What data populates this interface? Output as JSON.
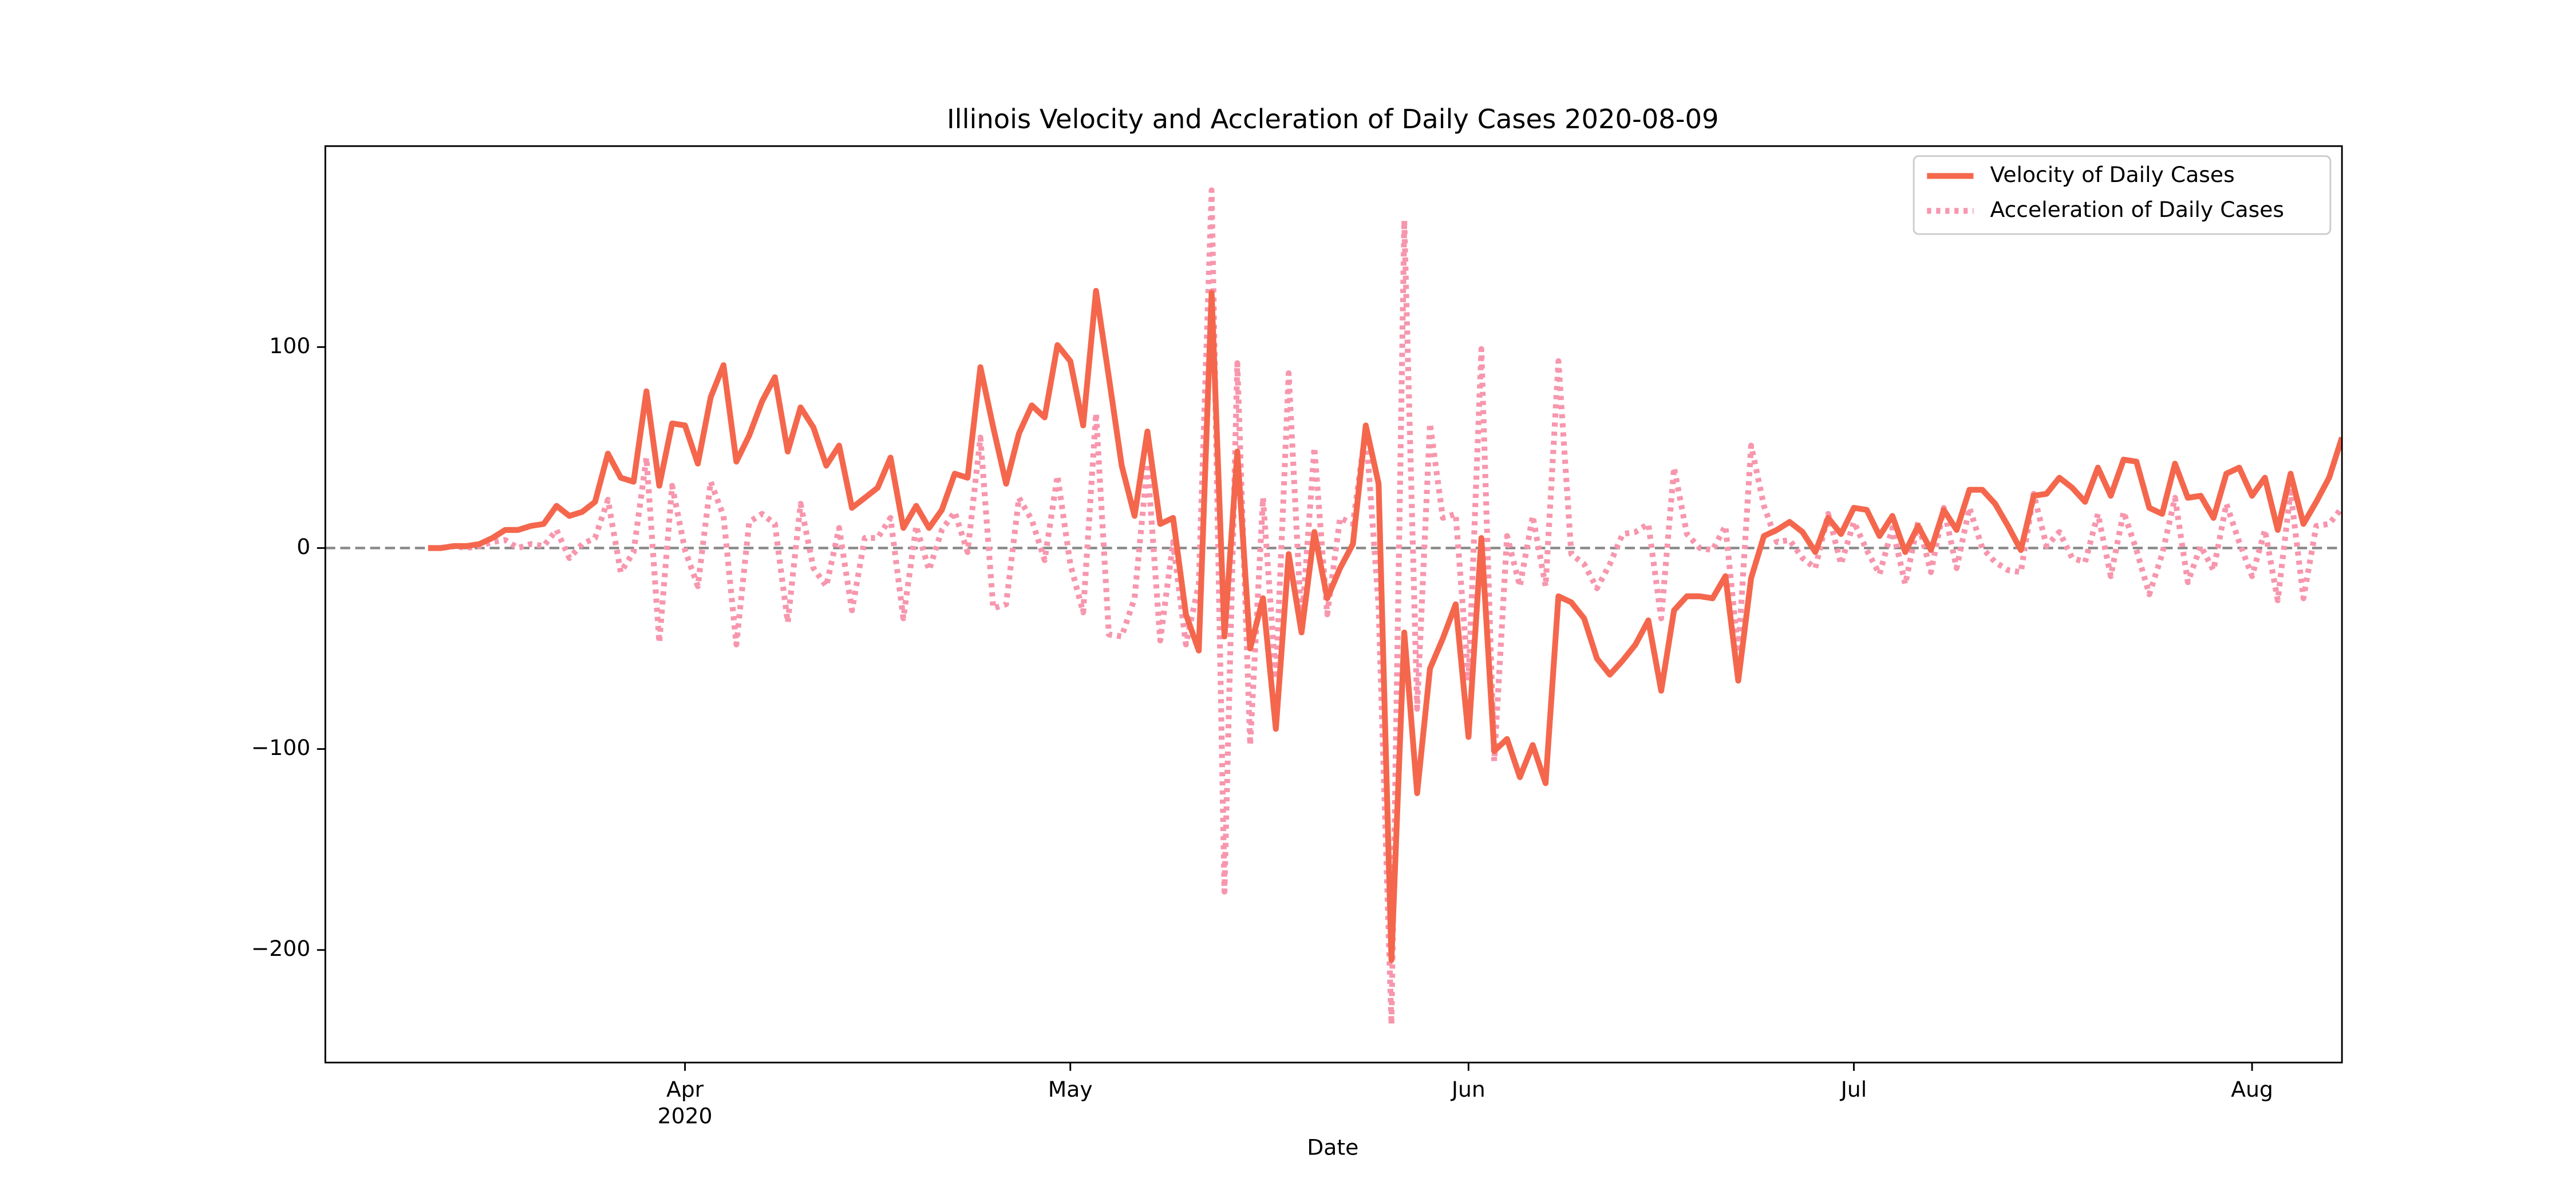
{
  "chart_data": {
    "type": "line",
    "title": "Illinois Velocity and Accleration of Daily Cases 2020-08-09",
    "x_label": "Date",
    "x_year_label": "2020",
    "categories": [
      null,
      null,
      null,
      null,
      null,
      null,
      null,
      null,
      null,
      null,
      null,
      null,
      null,
      null,
      null,
      null,
      null,
      null,
      null,
      null,
      "Apr",
      null,
      null,
      null,
      null,
      null,
      null,
      null,
      null,
      null,
      null,
      null,
      null,
      null,
      null,
      null,
      null,
      null,
      null,
      null,
      null,
      null,
      null,
      null,
      null,
      null,
      null,
      null,
      null,
      null,
      "May",
      null,
      null,
      null,
      null,
      null,
      null,
      null,
      null,
      null,
      null,
      null,
      null,
      null,
      null,
      null,
      null,
      null,
      null,
      null,
      null,
      null,
      null,
      null,
      null,
      null,
      null,
      null,
      null,
      null,
      null,
      "Jun",
      null,
      null,
      null,
      null,
      null,
      null,
      null,
      null,
      null,
      null,
      null,
      null,
      null,
      null,
      null,
      null,
      null,
      null,
      null,
      null,
      null,
      null,
      null,
      null,
      null,
      null,
      null,
      null,
      null,
      "Jul",
      null,
      null,
      null,
      null,
      null,
      null,
      null,
      null,
      null,
      null,
      null,
      null,
      null,
      null,
      null,
      null,
      null,
      null,
      null,
      null,
      null,
      null,
      null,
      null,
      null,
      null,
      null,
      null,
      null,
      null,
      "Aug",
      null,
      null,
      null,
      null,
      null,
      null,
      null
    ],
    "series": [
      {
        "name": "Velocity of Daily Cases",
        "color": "#f4674d",
        "style": "solid",
        "values": [
          0,
          0,
          1,
          1,
          2,
          5,
          9,
          9,
          11,
          12,
          21,
          16,
          18,
          23,
          47,
          35,
          33,
          78,
          31,
          62,
          61,
          42,
          75,
          91,
          43,
          56,
          73,
          85,
          48,
          70,
          60,
          41,
          51,
          20,
          25,
          30,
          45,
          10,
          21,
          10,
          19,
          37,
          35,
          90,
          60,
          32,
          57,
          71,
          65,
          101,
          93,
          61,
          128,
          85,
          41,
          16,
          58,
          12,
          15,
          -33,
          -51,
          127,
          -44,
          48,
          -50,
          -25,
          -90,
          -3,
          -42,
          8,
          -25,
          -10,
          2,
          61,
          32,
          -205,
          -42,
          -122,
          -60,
          -45,
          -28,
          -94,
          5,
          -101,
          -95,
          -114,
          -98,
          -117,
          -24,
          -27,
          -35,
          -55,
          -63,
          -56,
          -48,
          -36,
          -71,
          -31,
          -24,
          -24,
          -25,
          -14,
          -66,
          -15,
          6,
          9,
          13,
          8,
          -2,
          15,
          7,
          20,
          19,
          6,
          16,
          -2,
          11,
          -1,
          19,
          9,
          29,
          29,
          22,
          11,
          -1,
          26,
          27,
          35,
          30,
          23,
          40,
          26,
          44,
          43,
          20,
          17,
          42,
          25,
          26,
          15,
          37,
          40,
          26,
          35,
          9,
          37,
          12,
          23,
          35,
          55
        ]
      },
      {
        "name": "Acceleration of Daily Cases",
        "color": "#f796ad",
        "style": "dotted",
        "values": [
          null,
          0,
          1,
          0,
          1,
          3,
          4,
          0,
          2,
          1,
          9,
          -5,
          2,
          5,
          24,
          -12,
          -2,
          45,
          -47,
          31,
          -1,
          -19,
          33,
          16,
          -48,
          13,
          17,
          12,
          -37,
          22,
          -10,
          -19,
          10,
          -31,
          5,
          5,
          15,
          -35,
          11,
          -11,
          9,
          18,
          -2,
          55,
          -30,
          -28,
          25,
          14,
          -6,
          36,
          -8,
          -32,
          67,
          -43,
          -44,
          -25,
          42,
          -46,
          3,
          -48,
          -18,
          178,
          -171,
          92,
          -98,
          25,
          -65,
          87,
          -39,
          50,
          -33,
          15,
          12,
          59,
          -29,
          -237,
          163,
          -80,
          62,
          15,
          17,
          -66,
          99,
          -106,
          6,
          -19,
          16,
          -19,
          93,
          -3,
          -8,
          -20,
          -8,
          7,
          8,
          12,
          -35,
          40,
          7,
          0,
          -1,
          11,
          -52,
          51,
          21,
          3,
          4,
          -5,
          -10,
          17,
          -8,
          13,
          -1,
          -13,
          10,
          -18,
          13,
          -12,
          20,
          -10,
          20,
          0,
          -7,
          -11,
          -12,
          27,
          1,
          8,
          -5,
          -7,
          17,
          -14,
          18,
          -1,
          -23,
          -3,
          25,
          -17,
          1,
          -11,
          22,
          3,
          -14,
          9,
          -26,
          28,
          -25,
          11,
          12,
          20
        ]
      }
    ],
    "reference_line": {
      "y": 0,
      "color": "#888888",
      "style": "dashed"
    },
    "xlim": [
      -8,
      149
    ],
    "ylim": [
      -256,
      200
    ],
    "yticks": [
      {
        "value": -200,
        "label": "−200"
      },
      {
        "value": -100,
        "label": "−100"
      },
      0,
      100
    ],
    "legend": "upper right"
  }
}
